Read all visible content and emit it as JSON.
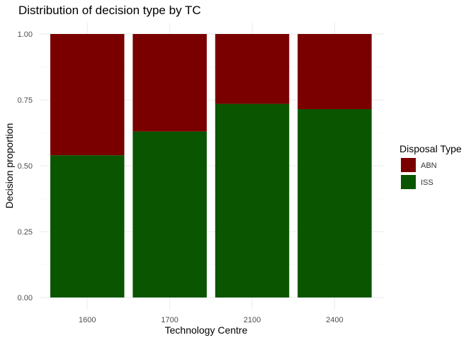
{
  "chart_data": {
    "type": "bar",
    "stacked": true,
    "title": "Distribution of decision type by TC",
    "xlabel": "Technology Centre",
    "ylabel": "Decision proportion",
    "categories": [
      "1600",
      "1700",
      "2100",
      "2400"
    ],
    "series": [
      {
        "name": "ISS",
        "color": "#0a5500",
        "values": [
          0.54,
          0.63,
          0.735,
          0.715
        ]
      },
      {
        "name": "ABN",
        "color": "#7a0000",
        "values": [
          0.46,
          0.37,
          0.265,
          0.285
        ]
      }
    ],
    "ylim": [
      0,
      1
    ],
    "yticks": [
      "0.00",
      "0.25",
      "0.50",
      "0.75",
      "1.00"
    ],
    "grid": true,
    "legend": {
      "title": "Disposal Type",
      "position": "right",
      "entries": [
        {
          "label": "ABN",
          "color": "#7a0000"
        },
        {
          "label": "ISS",
          "color": "#0a5500"
        }
      ]
    }
  }
}
